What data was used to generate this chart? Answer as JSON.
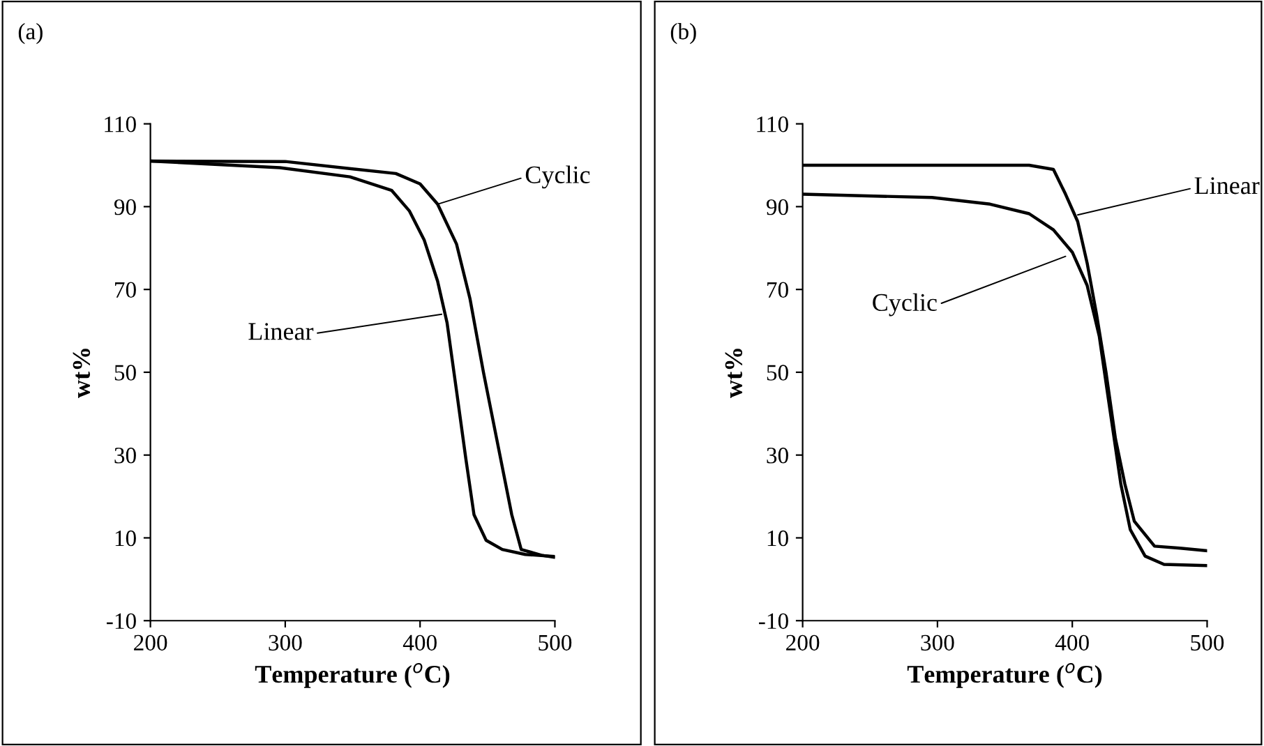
{
  "chart_data": [
    {
      "type": "line",
      "title": "(a)",
      "xlabel": "Temperature ($^{o}$C)",
      "ylabel": "wt%",
      "xlim": [
        200,
        500
      ],
      "ylim": [
        -10,
        110
      ],
      "xticks": [
        200,
        300,
        400,
        500
      ],
      "yticks": [
        -10,
        10,
        30,
        50,
        70,
        90,
        110
      ],
      "grid": false,
      "legend": false,
      "marker": "none",
      "line_style": "solid",
      "series": [
        {
          "color": "#000000",
          "x": [
            200,
            300,
            382,
            400,
            413,
            427,
            437,
            447,
            458,
            468,
            475,
            490,
            500
          ],
          "values": [
            101,
            100.9,
            98,
            95.5,
            90.6,
            81,
            67.8,
            50,
            32,
            15.6,
            7.2,
            5.8,
            5.3
          ]
        },
        {
          "color": "#000000",
          "x": [
            200,
            296,
            348,
            379,
            392,
            403,
            413,
            420,
            427,
            434,
            440,
            449,
            461,
            478,
            500
          ],
          "values": [
            101,
            99.4,
            97.2,
            93.9,
            89,
            82,
            72,
            62,
            45.6,
            29,
            15.6,
            9.4,
            7.2,
            6,
            5.5
          ]
        }
      ],
      "annotations": [
        {
          "text": "Cyclic",
          "x": 413,
          "y": 90.6
        },
        {
          "text": "Linear",
          "x": 416,
          "y": 64
        }
      ]
    },
    {
      "type": "line",
      "title": "(b)",
      "xlabel": "Temperature ($^{o}$C)",
      "ylabel": "wt%",
      "xlim": [
        200,
        500
      ],
      "ylim": [
        -10,
        110
      ],
      "xticks": [
        200,
        300,
        400,
        500
      ],
      "yticks": [
        -10,
        10,
        30,
        50,
        70,
        90,
        110
      ],
      "grid": false,
      "legend": false,
      "marker": "none",
      "line_style": "solid",
      "series": [
        {
          "color": "#000000",
          "x": [
            200,
            300,
            368,
            386,
            395,
            404,
            411,
            418,
            425,
            432,
            439,
            446,
            461,
            480,
            500
          ],
          "values": [
            100,
            100,
            100,
            99,
            93,
            86.4,
            76.4,
            64,
            50,
            34,
            23,
            14,
            8,
            7.5,
            6.9
          ]
        },
        {
          "color": "#000000",
          "x": [
            200,
            296,
            339,
            368,
            386,
            400,
            411,
            420,
            427,
            436,
            443,
            454,
            468,
            500
          ],
          "values": [
            93,
            92.2,
            90.6,
            88.3,
            84.4,
            79,
            71,
            58.7,
            43,
            23,
            12,
            5.6,
            3.6,
            3.3
          ]
        }
      ],
      "annotations": [
        {
          "text": "Linear",
          "x": 404,
          "y": 88
        },
        {
          "text": "Cyclic",
          "x": 395,
          "y": 78
        }
      ]
    }
  ]
}
